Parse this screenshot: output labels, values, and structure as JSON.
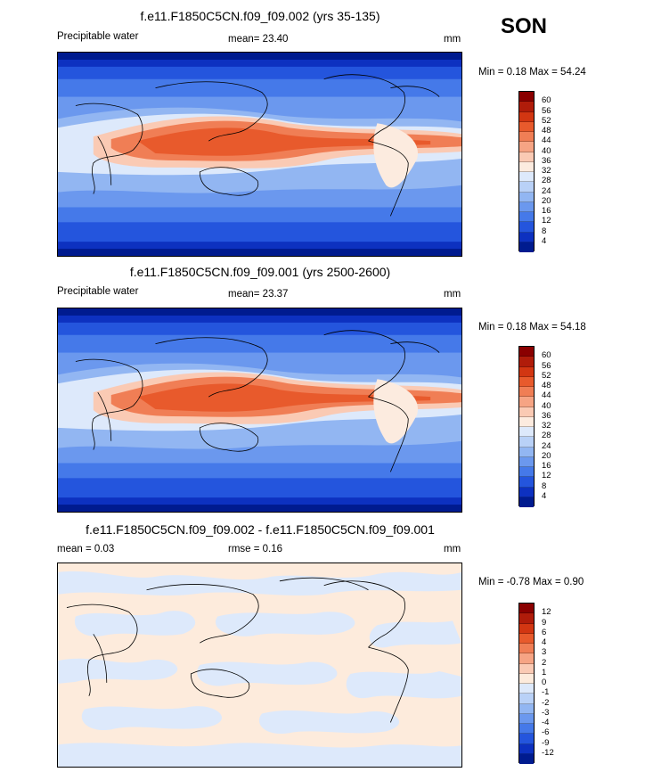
{
  "season": "SON",
  "panels": [
    {
      "title": "f.e11.F1850C5CN.f09_f09.002 (yrs 35-135)",
      "left_label": "Precipitable water",
      "center_label": "mean=  23.40",
      "units": "mm",
      "minmax": "Min =   0.18 Max =  54.24",
      "type": "field"
    },
    {
      "title": "f.e11.F1850C5CN.f09_f09.001 (yrs 2500-2600)",
      "left_label": "Precipitable water",
      "center_label": "mean=  23.37",
      "units": "mm",
      "minmax": "Min =   0.18 Max =  54.18",
      "type": "field"
    },
    {
      "title": "f.e11.F1850C5CN.f09_f09.002 - f.e11.F1850C5CN.f09_f09.001",
      "left_label": "mean =   0.03",
      "center_label": "rmse =   0.16",
      "units": "mm",
      "minmax": "Min =  -0.78 Max =   0.90",
      "type": "difference"
    }
  ],
  "colorbar_field": {
    "labels": [
      "60",
      "56",
      "52",
      "48",
      "44",
      "40",
      "36",
      "32",
      "28",
      "24",
      "20",
      "16",
      "12",
      "8",
      "4"
    ],
    "colors": [
      "#8a0000",
      "#b01c0a",
      "#d23612",
      "#e85a2c",
      "#f07e55",
      "#f6a484",
      "#facab4",
      "#fcebdf",
      "#dde9fb",
      "#b9d1f7",
      "#92b6f2",
      "#6b98ee",
      "#4579e9",
      "#2455dd",
      "#0d31c0",
      "#001b8f"
    ]
  },
  "colorbar_diff": {
    "labels": [
      "12",
      "9",
      "6",
      "4",
      "3",
      "2",
      "1",
      "0",
      "-1",
      "-2",
      "-3",
      "-4",
      "-6",
      "-9",
      "-12"
    ],
    "colors": [
      "#8a0000",
      "#b01c0a",
      "#d23612",
      "#e85a2c",
      "#f07e55",
      "#f6a484",
      "#facab4",
      "#fdebdc",
      "#dde9fb",
      "#b9d1f7",
      "#92b6f2",
      "#6b98ee",
      "#4579e9",
      "#2455dd",
      "#0d31c0",
      "#001b8f"
    ]
  }
}
